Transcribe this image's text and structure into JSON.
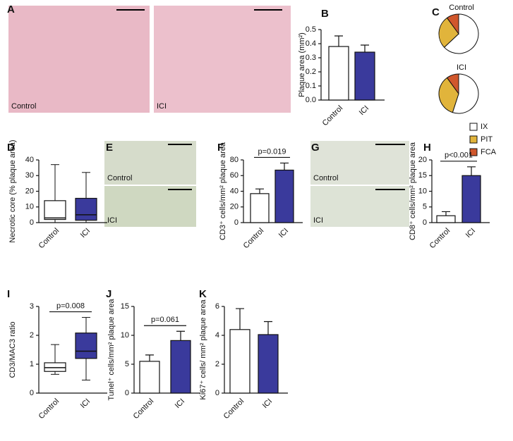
{
  "images": [
    {
      "panel": "A",
      "labels": [
        "Control",
        "ICI"
      ]
    },
    {
      "panel": "E",
      "labels": [
        "Control",
        "ICI"
      ]
    },
    {
      "panel": "G",
      "labels": [
        "Control",
        "ICI"
      ]
    }
  ],
  "chart_data": [
    {
      "type": "bar",
      "label": "B",
      "y_label": "Plaque area (mm²)",
      "categories": [
        "Control",
        "ICI"
      ],
      "values": [
        0.38,
        0.34
      ],
      "errors": [
        0.075,
        0.05
      ],
      "colors": [
        "#ffffff",
        "#3a3a9c"
      ],
      "ylim": [
        0,
        0.5
      ],
      "yticks": [
        {
          "value": 0,
          "label": "0.0"
        },
        0.1,
        0.2,
        0.3,
        0.4,
        0.5
      ]
    },
    {
      "type": "pie",
      "label": "C",
      "categories": [
        "IX",
        "PIT",
        "FCA"
      ],
      "colors": [
        "#ffffff",
        "#e1b43b",
        "#d0572c"
      ],
      "series": [
        {
          "name": "Control",
          "values": [
            63,
            27,
            10
          ]
        },
        {
          "name": "ICI",
          "values": [
            55,
            35,
            10
          ]
        }
      ]
    },
    {
      "type": "box",
      "label": "D",
      "y_label": "Necrotic core (% plaque area)",
      "categories": [
        "Control",
        "ICI"
      ],
      "boxes": [
        {
          "min": 0,
          "q1": 2,
          "median": 3,
          "q3": 14,
          "max": 37
        },
        {
          "min": 0,
          "q1": 1.5,
          "median": 5,
          "q3": 15.5,
          "max": 32
        }
      ],
      "colors": [
        "#ffffff",
        "#3a3a9c"
      ],
      "ylim": [
        0,
        40
      ],
      "yticks": [
        0,
        10,
        20,
        30,
        40
      ]
    },
    {
      "type": "bar",
      "label": "F",
      "y_label": "CD3⁺ cells/mm² plaque area",
      "categories": [
        "Control",
        "ICI"
      ],
      "values": [
        37,
        67
      ],
      "errors": [
        6,
        9
      ],
      "colors": [
        "#ffffff",
        "#3a3a9c"
      ],
      "annotation": "p=0.019",
      "ylim": [
        0,
        80
      ],
      "yticks": [
        0,
        20,
        40,
        60,
        80
      ]
    },
    {
      "type": "bar",
      "label": "H",
      "y_label": "CD8⁺ cells/mm² plaque area",
      "categories": [
        "Control",
        "ICI"
      ],
      "values": [
        2.2,
        15
      ],
      "errors": [
        1.3,
        2.8
      ],
      "colors": [
        "#ffffff",
        "#3a3a9c"
      ],
      "annotation": "p<0.001",
      "ylim": [
        0,
        20
      ],
      "yticks": [
        0,
        5,
        10,
        15,
        20
      ]
    },
    {
      "type": "box",
      "label": "I",
      "y_label": "CD3/MAC3 ratio",
      "categories": [
        "Control",
        "ICI"
      ],
      "boxes": [
        {
          "min": 0.65,
          "q1": 0.75,
          "median": 0.88,
          "q3": 1.05,
          "max": 1.68
        },
        {
          "min": 0.45,
          "q1": 1.2,
          "median": 1.45,
          "q3": 2.08,
          "max": 2.62
        }
      ],
      "colors": [
        "#ffffff",
        "#3a3a9c"
      ],
      "annotation": "p=0.008",
      "ylim": [
        0,
        3
      ],
      "yticks": [
        0,
        1,
        2,
        3
      ]
    },
    {
      "type": "bar",
      "label": "J",
      "y_label": "Tunel⁺ cells/mm² plaque area",
      "categories": [
        "Control",
        "ICI"
      ],
      "values": [
        5.5,
        9.1
      ],
      "errors": [
        1.1,
        1.6
      ],
      "colors": [
        "#ffffff",
        "#3a3a9c"
      ],
      "annotation": "p=0.061",
      "ylim": [
        0,
        15
      ],
      "yticks": [
        0,
        5,
        10,
        15
      ]
    },
    {
      "type": "bar",
      "label": "K",
      "y_label": "Ki67⁺ cells/ mm² plaque area",
      "categories": [
        "Control",
        "ICI"
      ],
      "values": [
        4.4,
        4.05
      ],
      "errors": [
        1.45,
        0.9
      ],
      "colors": [
        "#ffffff",
        "#3a3a9c"
      ],
      "ylim": [
        0,
        6
      ],
      "yticks": [
        0,
        2,
        4,
        6
      ]
    }
  ]
}
